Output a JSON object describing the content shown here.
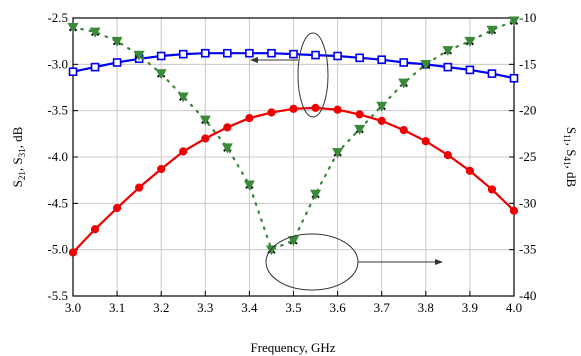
{
  "chart_data": {
    "type": "line",
    "xlabel": "Frequency, GHz",
    "ylabel_left": "S21, S31, dB",
    "ylabel_right": "S11, S41, dB",
    "ylabel_left_parts": {
      "a": "S",
      "a_sub": "21",
      "sep1": ", S",
      "b_sub": "31",
      "tail": ", dB"
    },
    "ylabel_right_parts": {
      "a": "S",
      "a_sub": "11",
      "sep1": ", S",
      "b_sub": "41",
      "tail": ", dB"
    },
    "xlim": [
      3.0,
      4.0
    ],
    "ylim_left": [
      -5.5,
      -2.5
    ],
    "ylim_right": [
      -40,
      -10
    ],
    "grid": true,
    "x_ticks": [
      "3.0",
      "3.1",
      "3.2",
      "3.3",
      "3.4",
      "3.5",
      "3.6",
      "3.7",
      "3.8",
      "3.9",
      "4.0"
    ],
    "y_left_ticks": [
      "-2.5",
      "-3.0",
      "-3.5",
      "-4.0",
      "-4.5",
      "-5.0",
      "-5.5"
    ],
    "y_right_ticks": [
      "-10",
      "-15",
      "-20",
      "-25",
      "-30",
      "-35",
      "-40"
    ],
    "series": [
      {
        "axis": "left",
        "color": "#0000ee",
        "marker": "square",
        "line": "solid",
        "x": [
          3.0,
          3.05,
          3.1,
          3.15,
          3.2,
          3.25,
          3.3,
          3.35,
          3.4,
          3.45,
          3.5,
          3.55,
          3.6,
          3.65,
          3.7,
          3.75,
          3.8,
          3.85,
          3.9,
          3.95,
          4.0
        ],
        "values": [
          -3.08,
          -3.03,
          -2.98,
          -2.94,
          -2.91,
          -2.89,
          -2.88,
          -2.88,
          -2.88,
          -2.88,
          -2.89,
          -2.9,
          -2.91,
          -2.93,
          -2.95,
          -2.98,
          -3.0,
          -3.03,
          -3.06,
          -3.1,
          -3.15
        ]
      },
      {
        "axis": "left",
        "color": "#ee0000",
        "marker": "circle",
        "line": "solid",
        "x": [
          3.0,
          3.05,
          3.1,
          3.15,
          3.2,
          3.25,
          3.3,
          3.35,
          3.4,
          3.45,
          3.5,
          3.55,
          3.6,
          3.65,
          3.7,
          3.75,
          3.8,
          3.85,
          3.9,
          3.95,
          4.0
        ],
        "values": [
          -5.03,
          -4.78,
          -4.55,
          -4.33,
          -4.13,
          -3.94,
          -3.8,
          -3.68,
          -3.58,
          -3.52,
          -3.48,
          -3.47,
          -3.49,
          -3.54,
          -3.61,
          -3.71,
          -3.83,
          -3.98,
          -4.15,
          -4.35,
          -4.58
        ]
      },
      {
        "axis": "right",
        "color": "#111111",
        "marker": "x",
        "line": "dotted",
        "x": [
          3.0,
          3.05,
          3.1,
          3.15,
          3.2,
          3.25,
          3.3,
          3.35,
          3.4,
          3.45,
          3.5,
          3.55,
          3.6,
          3.65,
          3.7,
          3.75,
          3.8,
          3.85,
          3.9,
          3.95,
          4.0
        ],
        "values": [
          -11.0,
          -11.5,
          -12.5,
          -14.0,
          -16.0,
          -18.5,
          -21.0,
          -24.0,
          -28.0,
          -35.0,
          -34.0,
          -29.0,
          -24.5,
          -22.0,
          -19.5,
          -17.0,
          -15.0,
          -13.5,
          -12.5,
          -11.3,
          -10.3
        ]
      },
      {
        "axis": "right",
        "color": "#3a8a3a",
        "marker": "triangle-down",
        "line": "dotted",
        "x": [
          3.0,
          3.05,
          3.1,
          3.15,
          3.2,
          3.25,
          3.3,
          3.35,
          3.4,
          3.45,
          3.5,
          3.55,
          3.6,
          3.65,
          3.7,
          3.75,
          3.8,
          3.85,
          3.9,
          3.95,
          4.0
        ],
        "values": [
          -11.0,
          -11.5,
          -12.5,
          -14.0,
          -16.0,
          -18.5,
          -21.0,
          -24.0,
          -28.0,
          -35.0,
          -34.0,
          -29.0,
          -24.5,
          -22.0,
          -19.5,
          -17.0,
          -15.0,
          -13.5,
          -12.5,
          -11.3,
          -10.3
        ]
      }
    ]
  }
}
